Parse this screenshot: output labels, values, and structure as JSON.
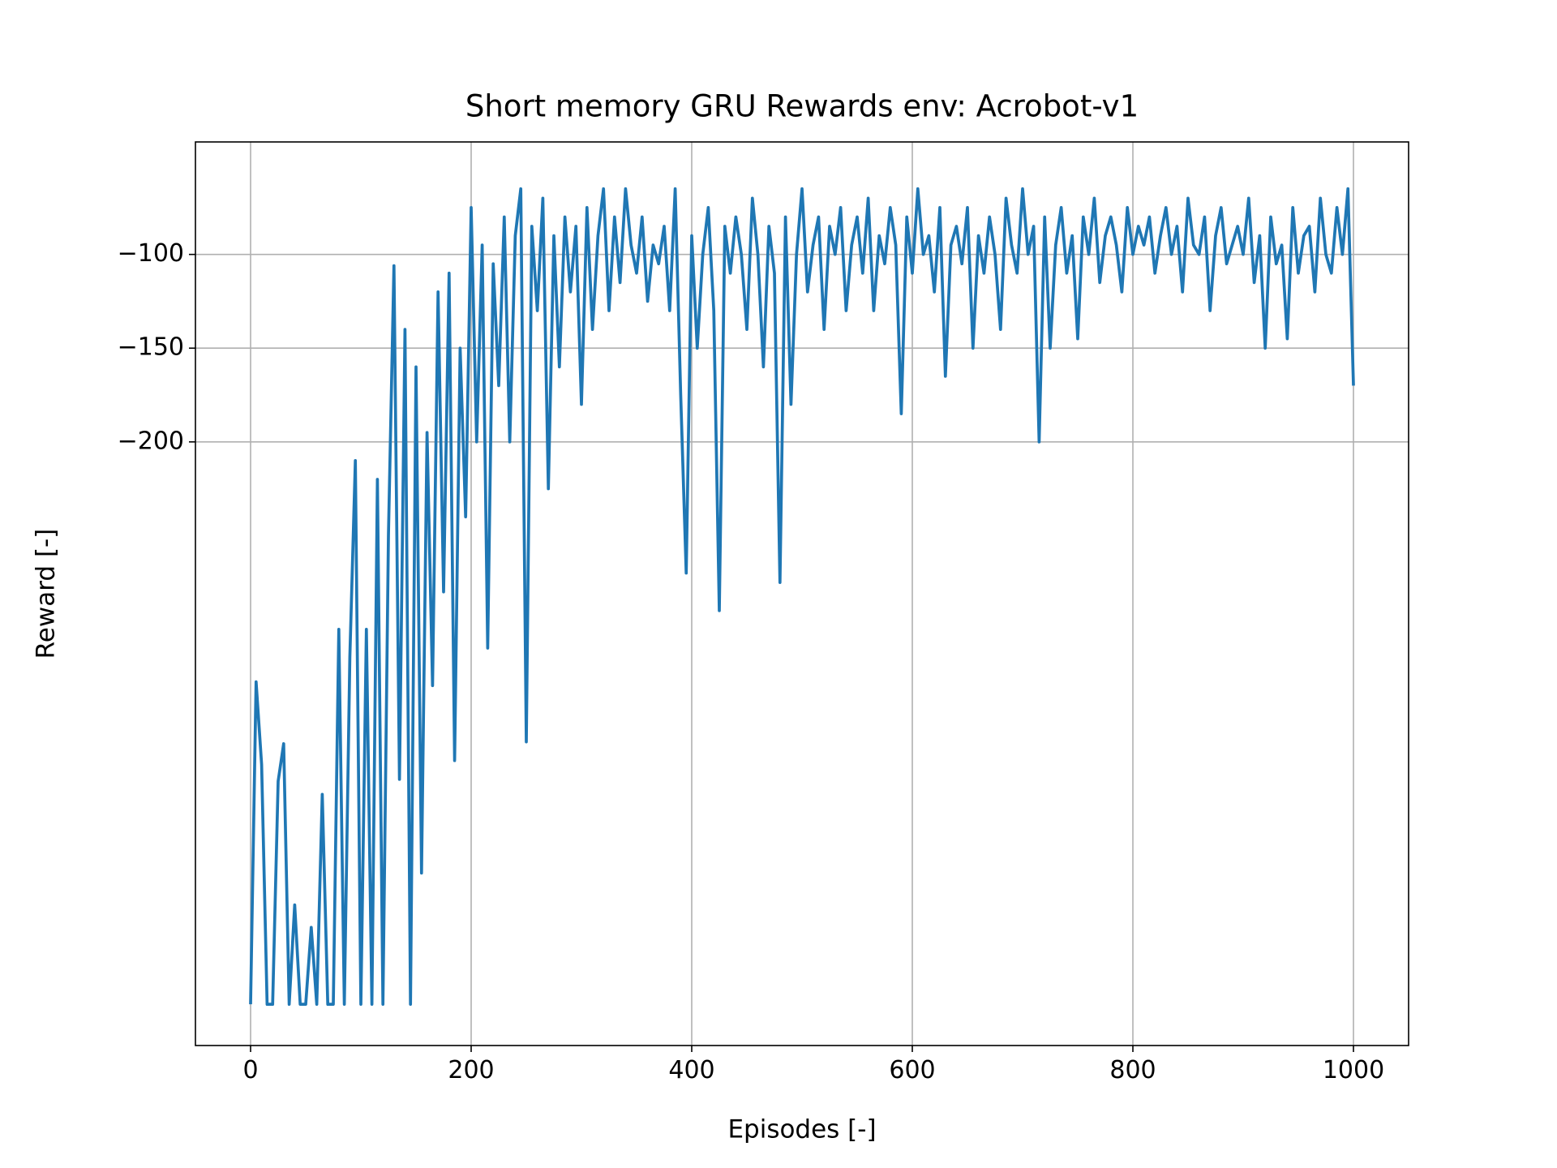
{
  "chart_data": {
    "type": "line",
    "title": "Short memory GRU Rewards env: Acrobot-v1",
    "xlabel": "Episodes [-]",
    "ylabel": "Reward [-]",
    "color": "#1f77b4",
    "grid": true,
    "xlim": [
      -50,
      1050
    ],
    "ylim": [
      -522,
      -40
    ],
    "xticks": [
      0,
      200,
      400,
      600,
      800,
      1000
    ],
    "yticks": [
      {
        "value": -200,
        "label": "−200"
      },
      {
        "value": -150,
        "label": "−150"
      },
      {
        "value": -100,
        "label": "−100"
      }
    ],
    "x": [
      0,
      5,
      10,
      15,
      20,
      25,
      30,
      35,
      40,
      45,
      50,
      55,
      60,
      65,
      70,
      75,
      80,
      85,
      90,
      95,
      100,
      105,
      110,
      115,
      120,
      125,
      130,
      135,
      140,
      145,
      150,
      155,
      160,
      165,
      170,
      175,
      180,
      185,
      190,
      195,
      200,
      205,
      210,
      215,
      220,
      225,
      230,
      235,
      240,
      245,
      250,
      255,
      260,
      265,
      270,
      275,
      280,
      285,
      290,
      295,
      300,
      305,
      310,
      315,
      320,
      325,
      330,
      335,
      340,
      345,
      350,
      355,
      360,
      365,
      370,
      375,
      380,
      385,
      390,
      395,
      400,
      405,
      410,
      415,
      420,
      425,
      430,
      435,
      440,
      445,
      450,
      455,
      460,
      465,
      470,
      475,
      480,
      485,
      490,
      495,
      500,
      505,
      510,
      515,
      520,
      525,
      530,
      535,
      540,
      545,
      550,
      555,
      560,
      565,
      570,
      575,
      580,
      585,
      590,
      595,
      600,
      605,
      610,
      615,
      620,
      625,
      630,
      635,
      640,
      645,
      650,
      655,
      660,
      665,
      670,
      675,
      680,
      685,
      690,
      695,
      700,
      705,
      710,
      715,
      720,
      725,
      730,
      735,
      740,
      745,
      750,
      755,
      760,
      765,
      770,
      775,
      780,
      785,
      790,
      795,
      800,
      805,
      810,
      815,
      820,
      825,
      830,
      835,
      840,
      845,
      850,
      855,
      860,
      865,
      870,
      875,
      880,
      885,
      890,
      895,
      900,
      905,
      910,
      915,
      920,
      925,
      930,
      935,
      940,
      945,
      950,
      955,
      960,
      965,
      970,
      975,
      980,
      985,
      990,
      995,
      1000
    ],
    "values": [
      -500,
      -328,
      -372,
      -500,
      -500,
      -381,
      -361,
      -500,
      -447,
      -500,
      -500,
      -459,
      -500,
      -388,
      -500,
      -500,
      -300,
      -500,
      -315,
      -210,
      -500,
      -300,
      -500,
      -220,
      -500,
      -250,
      -106,
      -380,
      -140,
      -500,
      -160,
      -430,
      -195,
      -330,
      -120,
      -280,
      -110,
      -370,
      -150,
      -240,
      -75,
      -200,
      -95,
      -310,
      -105,
      -170,
      -80,
      -200,
      -90,
      -65,
      -360,
      -85,
      -130,
      -70,
      -225,
      -90,
      -160,
      -80,
      -120,
      -85,
      -180,
      -75,
      -140,
      -90,
      -65,
      -130,
      -80,
      -115,
      -65,
      -95,
      -110,
      -80,
      -125,
      -95,
      -105,
      -85,
      -130,
      -65,
      -175,
      -270,
      -90,
      -150,
      -100,
      -75,
      -130,
      -290,
      -85,
      -110,
      -80,
      -100,
      -140,
      -70,
      -100,
      -160,
      -85,
      -110,
      -275,
      -80,
      -180,
      -100,
      -65,
      -120,
      -95,
      -80,
      -140,
      -85,
      -100,
      -75,
      -130,
      -95,
      -80,
      -110,
      -70,
      -130,
      -90,
      -105,
      -75,
      -95,
      -185,
      -80,
      -110,
      -65,
      -100,
      -90,
      -120,
      -75,
      -165,
      -95,
      -85,
      -105,
      -75,
      -150,
      -90,
      -110,
      -80,
      -100,
      -140,
      -70,
      -95,
      -110,
      -65,
      -100,
      -85,
      -200,
      -80,
      -150,
      -95,
      -75,
      -110,
      -90,
      -145,
      -80,
      -100,
      -70,
      -115,
      -90,
      -80,
      -95,
      -120,
      -75,
      -100,
      -85,
      -95,
      -80,
      -110,
      -90,
      -75,
      -100,
      -85,
      -120,
      -70,
      -95,
      -100,
      -80,
      -130,
      -90,
      -75,
      -105,
      -95,
      -85,
      -100,
      -70,
      -115,
      -90,
      -150,
      -80,
      -105,
      -95,
      -145,
      -75,
      -110,
      -90,
      -85,
      -120,
      -70,
      -100,
      -110,
      -75,
      -100,
      -65,
      -170
    ]
  }
}
